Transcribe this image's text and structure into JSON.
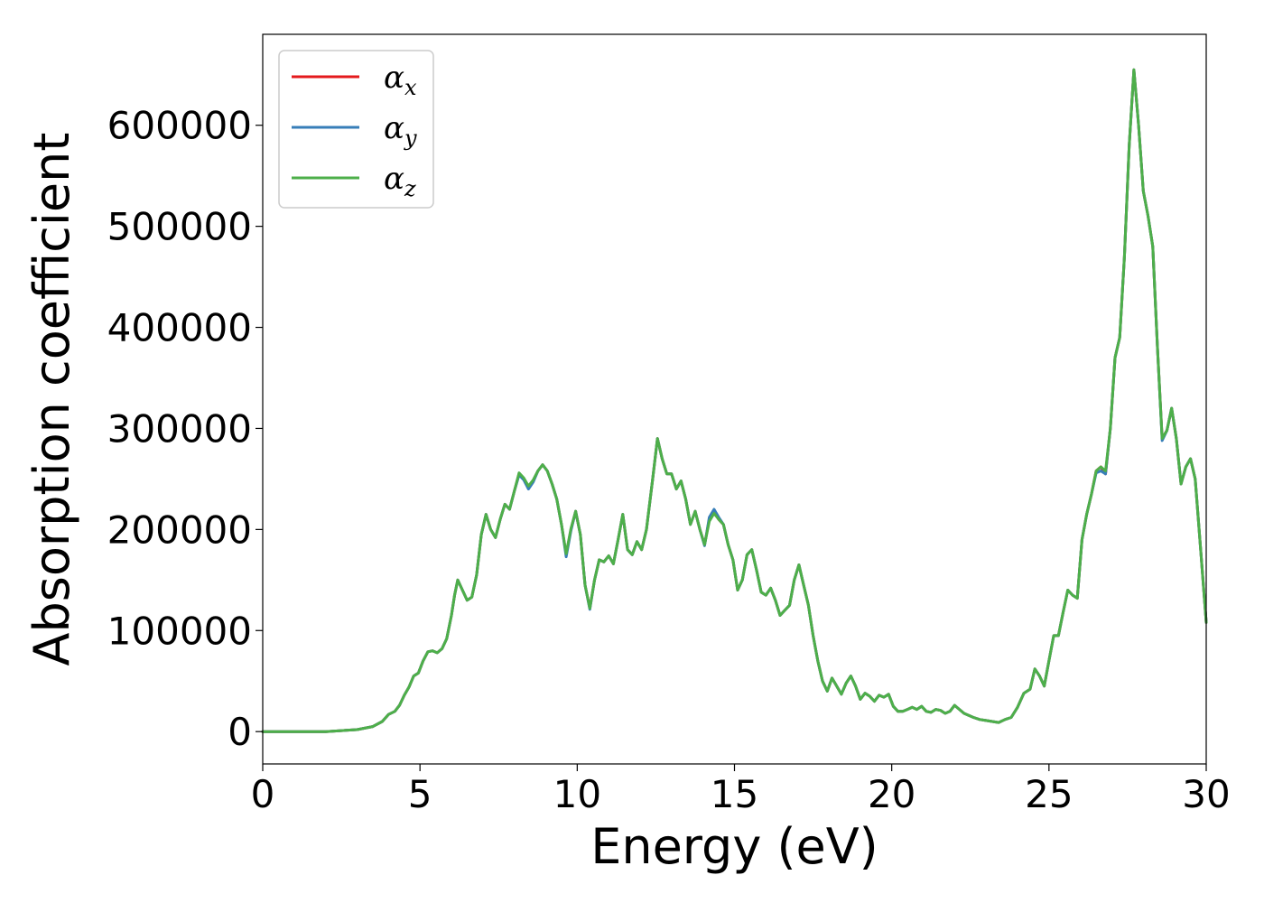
{
  "chart_data": {
    "type": "line",
    "title": "",
    "xlabel": "Energy (eV)",
    "ylabel": "Absorption coefficient",
    "xlim": [
      0,
      30
    ],
    "ylim": [
      -32000,
      690000
    ],
    "xticks": [
      0,
      5,
      10,
      15,
      20,
      25,
      30
    ],
    "yticks": [
      0,
      100000,
      200000,
      300000,
      400000,
      500000,
      600000
    ],
    "grid": false,
    "legend_position": "top-left",
    "series": [
      {
        "name": "α_x",
        "name_base": "α",
        "name_sub": "x",
        "color": "#e41a1c",
        "x": [
          0,
          1,
          2,
          3,
          3.5,
          3.8,
          4.0,
          4.2,
          4.35,
          4.5,
          4.65,
          4.8,
          4.95,
          5.1,
          5.25,
          5.4,
          5.55,
          5.7,
          5.85,
          6.0,
          6.1,
          6.2,
          6.35,
          6.5,
          6.65,
          6.8,
          6.95,
          7.1,
          7.25,
          7.4,
          7.55,
          7.7,
          7.85,
          8.0,
          8.15,
          8.3,
          8.45,
          8.6,
          8.75,
          8.9,
          9.05,
          9.2,
          9.35,
          9.5,
          9.65,
          9.8,
          9.95,
          10.1,
          10.25,
          10.4,
          10.55,
          10.7,
          10.85,
          11.0,
          11.15,
          11.3,
          11.45,
          11.6,
          11.75,
          11.9,
          12.05,
          12.2,
          12.4,
          12.55,
          12.7,
          12.85,
          13.0,
          13.15,
          13.3,
          13.45,
          13.6,
          13.75,
          13.9,
          14.05,
          14.2,
          14.35,
          14.5,
          14.65,
          14.8,
          14.95,
          15.1,
          15.25,
          15.4,
          15.55,
          15.7,
          15.85,
          16.0,
          16.15,
          16.3,
          16.45,
          16.6,
          16.75,
          16.9,
          17.05,
          17.2,
          17.35,
          17.5,
          17.65,
          17.8,
          17.95,
          18.1,
          18.25,
          18.4,
          18.55,
          18.7,
          18.85,
          19.0,
          19.15,
          19.3,
          19.45,
          19.6,
          19.75,
          19.9,
          20.05,
          20.2,
          20.35,
          20.5,
          20.65,
          20.8,
          20.95,
          21.1,
          21.25,
          21.4,
          21.55,
          21.7,
          21.85,
          22.0,
          22.15,
          22.3,
          22.45,
          22.6,
          22.8,
          23.0,
          23.2,
          23.4,
          23.6,
          23.8,
          24.0,
          24.2,
          24.4,
          24.55,
          24.7,
          24.85,
          25.0,
          25.15,
          25.3,
          25.45,
          25.6,
          25.75,
          25.9,
          26.05,
          26.2,
          26.35,
          26.5,
          26.65,
          26.8,
          26.95,
          27.1,
          27.25,
          27.4,
          27.55,
          27.7,
          27.85,
          28.0,
          28.15,
          28.3,
          28.45,
          28.6,
          28.75,
          28.9,
          29.05,
          29.2,
          29.35,
          29.5,
          29.65,
          29.8,
          30.0
        ],
        "values": [
          0,
          0,
          0,
          2000,
          5000,
          10000,
          17000,
          20000,
          26000,
          36000,
          44000,
          55000,
          58000,
          70000,
          79000,
          80000,
          78000,
          82000,
          92000,
          115000,
          135000,
          150000,
          140000,
          130000,
          133000,
          155000,
          195000,
          215000,
          200000,
          192000,
          210000,
          225000,
          220000,
          238000,
          255000,
          250000,
          242000,
          248000,
          258000,
          264000,
          258000,
          245000,
          230000,
          205000,
          175000,
          200000,
          218000,
          195000,
          145000,
          122000,
          150000,
          170000,
          168000,
          174000,
          166000,
          190000,
          215000,
          180000,
          175000,
          188000,
          180000,
          200000,
          250000,
          290000,
          270000,
          255000,
          255000,
          240000,
          248000,
          230000,
          205000,
          218000,
          200000,
          185000,
          210000,
          218000,
          210000,
          205000,
          185000,
          170000,
          140000,
          150000,
          175000,
          180000,
          160000,
          138000,
          135000,
          142000,
          130000,
          115000,
          120000,
          125000,
          150000,
          165000,
          145000,
          125000,
          95000,
          70000,
          50000,
          40000,
          53000,
          45000,
          37000,
          48000,
          55000,
          45000,
          32000,
          38000,
          35000,
          30000,
          36000,
          34000,
          37000,
          25000,
          20000,
          20000,
          22000,
          24000,
          22000,
          25000,
          20000,
          19000,
          22000,
          21000,
          18000,
          20000,
          26000,
          22000,
          18000,
          16000,
          14000,
          12000,
          11000,
          10000,
          9000,
          12000,
          14000,
          24000,
          38000,
          42000,
          62000,
          55000,
          45000,
          70000,
          95000,
          95000,
          118000,
          140000,
          135000,
          132000,
          190000,
          215000,
          235000,
          258000,
          262000,
          255000,
          300000,
          370000,
          390000,
          470000,
          580000,
          655000,
          600000,
          535000,
          510000,
          480000,
          380000,
          290000,
          298000,
          320000,
          290000,
          245000,
          262000,
          270000,
          250000,
          190000,
          108000
        ]
      },
      {
        "name": "α_y",
        "name_base": "α",
        "name_sub": "y",
        "color": "#377eb8",
        "x": [
          0,
          1,
          2,
          3,
          3.5,
          3.8,
          4.0,
          4.2,
          4.35,
          4.5,
          4.65,
          4.8,
          4.95,
          5.1,
          5.25,
          5.4,
          5.55,
          5.7,
          5.85,
          6.0,
          6.1,
          6.2,
          6.35,
          6.5,
          6.65,
          6.8,
          6.95,
          7.1,
          7.25,
          7.4,
          7.55,
          7.7,
          7.85,
          8.0,
          8.15,
          8.3,
          8.45,
          8.6,
          8.75,
          8.9,
          9.05,
          9.2,
          9.35,
          9.5,
          9.65,
          9.8,
          9.95,
          10.1,
          10.25,
          10.4,
          10.55,
          10.7,
          10.85,
          11.0,
          11.15,
          11.3,
          11.45,
          11.6,
          11.75,
          11.9,
          12.05,
          12.2,
          12.4,
          12.55,
          12.7,
          12.85,
          13.0,
          13.15,
          13.3,
          13.45,
          13.6,
          13.75,
          13.9,
          14.05,
          14.2,
          14.35,
          14.5,
          14.65,
          14.8,
          14.95,
          15.1,
          15.25,
          15.4,
          15.55,
          15.7,
          15.85,
          16.0,
          16.15,
          16.3,
          16.45,
          16.6,
          16.75,
          16.9,
          17.05,
          17.2,
          17.35,
          17.5,
          17.65,
          17.8,
          17.95,
          18.1,
          18.25,
          18.4,
          18.55,
          18.7,
          18.85,
          19.0,
          19.15,
          19.3,
          19.45,
          19.6,
          19.75,
          19.9,
          20.05,
          20.2,
          20.35,
          20.5,
          20.65,
          20.8,
          20.95,
          21.1,
          21.25,
          21.4,
          21.55,
          21.7,
          21.85,
          22.0,
          22.15,
          22.3,
          22.45,
          22.6,
          22.8,
          23.0,
          23.2,
          23.4,
          23.6,
          23.8,
          24.0,
          24.2,
          24.4,
          24.55,
          24.7,
          24.85,
          25.0,
          25.15,
          25.3,
          25.45,
          25.6,
          25.75,
          25.9,
          26.05,
          26.2,
          26.35,
          26.5,
          26.65,
          26.8,
          26.95,
          27.1,
          27.25,
          27.4,
          27.55,
          27.7,
          27.85,
          28.0,
          28.15,
          28.3,
          28.45,
          28.6,
          28.75,
          28.9,
          29.05,
          29.2,
          29.35,
          29.5,
          29.65,
          29.8,
          30.0
        ],
        "values": [
          0,
          0,
          0,
          2000,
          5000,
          10000,
          17000,
          20000,
          26000,
          36000,
          44000,
          55000,
          58000,
          70000,
          79000,
          80000,
          78000,
          82000,
          92000,
          115000,
          135000,
          150000,
          140000,
          130000,
          133000,
          155000,
          195000,
          215000,
          200000,
          192000,
          210000,
          225000,
          220000,
          238000,
          254000,
          249000,
          240000,
          247000,
          258000,
          264000,
          258000,
          245000,
          230000,
          205000,
          173000,
          199000,
          218000,
          195000,
          145000,
          121000,
          150000,
          170000,
          168000,
          174000,
          166000,
          190000,
          215000,
          180000,
          175000,
          188000,
          180000,
          200000,
          250000,
          290000,
          270000,
          255000,
          255000,
          240000,
          248000,
          230000,
          205000,
          218000,
          200000,
          184000,
          212000,
          220000,
          212000,
          205000,
          185000,
          170000,
          140000,
          150000,
          175000,
          180000,
          160000,
          138000,
          135000,
          142000,
          130000,
          115000,
          120000,
          125000,
          150000,
          165000,
          145000,
          125000,
          95000,
          70000,
          50000,
          40000,
          53000,
          45000,
          37000,
          48000,
          55000,
          45000,
          32000,
          38000,
          35000,
          30000,
          36000,
          34000,
          37000,
          25000,
          20000,
          20000,
          22000,
          24000,
          22000,
          25000,
          20000,
          19000,
          22000,
          21000,
          18000,
          20000,
          26000,
          22000,
          18000,
          16000,
          14000,
          12000,
          11000,
          10000,
          9000,
          12000,
          14000,
          24000,
          38000,
          42000,
          62000,
          55000,
          45000,
          70000,
          95000,
          95000,
          118000,
          140000,
          135000,
          132000,
          190000,
          215000,
          235000,
          256000,
          258000,
          255000,
          300000,
          370000,
          390000,
          470000,
          580000,
          655000,
          600000,
          535000,
          510000,
          480000,
          380000,
          288000,
          298000,
          320000,
          290000,
          245000,
          262000,
          270000,
          250000,
          190000,
          108000
        ]
      },
      {
        "name": "α_z",
        "name_base": "α",
        "name_sub": "z",
        "color": "#4daf4a",
        "x": [
          0,
          1,
          2,
          3,
          3.5,
          3.8,
          4.0,
          4.2,
          4.35,
          4.5,
          4.65,
          4.8,
          4.95,
          5.1,
          5.25,
          5.4,
          5.55,
          5.7,
          5.85,
          6.0,
          6.1,
          6.2,
          6.35,
          6.5,
          6.65,
          6.8,
          6.95,
          7.1,
          7.25,
          7.4,
          7.55,
          7.7,
          7.85,
          8.0,
          8.15,
          8.3,
          8.45,
          8.6,
          8.75,
          8.9,
          9.05,
          9.2,
          9.35,
          9.5,
          9.65,
          9.8,
          9.95,
          10.1,
          10.25,
          10.4,
          10.55,
          10.7,
          10.85,
          11.0,
          11.15,
          11.3,
          11.45,
          11.6,
          11.75,
          11.9,
          12.05,
          12.2,
          12.4,
          12.55,
          12.7,
          12.85,
          13.0,
          13.15,
          13.3,
          13.45,
          13.6,
          13.75,
          13.9,
          14.05,
          14.2,
          14.35,
          14.5,
          14.65,
          14.8,
          14.95,
          15.1,
          15.25,
          15.4,
          15.55,
          15.7,
          15.85,
          16.0,
          16.15,
          16.3,
          16.45,
          16.6,
          16.75,
          16.9,
          17.05,
          17.2,
          17.35,
          17.5,
          17.65,
          17.8,
          17.95,
          18.1,
          18.25,
          18.4,
          18.55,
          18.7,
          18.85,
          19.0,
          19.15,
          19.3,
          19.45,
          19.6,
          19.75,
          19.9,
          20.05,
          20.2,
          20.35,
          20.5,
          20.65,
          20.8,
          20.95,
          21.1,
          21.25,
          21.4,
          21.55,
          21.7,
          21.85,
          22.0,
          22.15,
          22.3,
          22.45,
          22.6,
          22.8,
          23.0,
          23.2,
          23.4,
          23.6,
          23.8,
          24.0,
          24.2,
          24.4,
          24.55,
          24.7,
          24.85,
          25.0,
          25.15,
          25.3,
          25.45,
          25.6,
          25.75,
          25.9,
          26.05,
          26.2,
          26.35,
          26.5,
          26.65,
          26.8,
          26.95,
          27.1,
          27.25,
          27.4,
          27.55,
          27.7,
          27.85,
          28.0,
          28.15,
          28.3,
          28.45,
          28.6,
          28.75,
          28.9,
          29.05,
          29.2,
          29.35,
          29.5,
          29.65,
          29.8,
          30.0
        ],
        "values": [
          0,
          0,
          0,
          2000,
          5000,
          10000,
          17000,
          20000,
          26000,
          36000,
          44000,
          55000,
          58000,
          70000,
          79000,
          80000,
          78000,
          82000,
          92000,
          115000,
          135000,
          150000,
          140000,
          130000,
          133000,
          155000,
          195000,
          215000,
          200000,
          192000,
          210000,
          225000,
          220000,
          238000,
          256000,
          251000,
          243000,
          249000,
          258000,
          264000,
          258000,
          245000,
          230000,
          205000,
          176000,
          201000,
          218000,
          195000,
          145000,
          122000,
          150000,
          170000,
          168000,
          174000,
          166000,
          190000,
          215000,
          180000,
          175000,
          188000,
          180000,
          200000,
          250000,
          290000,
          270000,
          255000,
          255000,
          240000,
          248000,
          230000,
          205000,
          218000,
          200000,
          185000,
          208000,
          216000,
          210000,
          205000,
          185000,
          170000,
          140000,
          150000,
          175000,
          180000,
          160000,
          138000,
          135000,
          142000,
          130000,
          115000,
          120000,
          125000,
          150000,
          165000,
          145000,
          125000,
          95000,
          70000,
          50000,
          40000,
          53000,
          45000,
          37000,
          48000,
          55000,
          45000,
          32000,
          38000,
          35000,
          30000,
          36000,
          34000,
          37000,
          25000,
          20000,
          20000,
          22000,
          24000,
          22000,
          25000,
          20000,
          19000,
          22000,
          21000,
          18000,
          20000,
          26000,
          22000,
          18000,
          16000,
          14000,
          12000,
          11000,
          10000,
          9000,
          12000,
          14000,
          24000,
          38000,
          42000,
          62000,
          55000,
          45000,
          70000,
          95000,
          95000,
          118000,
          140000,
          135000,
          132000,
          190000,
          215000,
          235000,
          258000,
          262000,
          258000,
          300000,
          370000,
          390000,
          470000,
          580000,
          655000,
          600000,
          535000,
          510000,
          480000,
          380000,
          290000,
          298000,
          320000,
          290000,
          245000,
          262000,
          270000,
          250000,
          190000,
          108000
        ]
      }
    ]
  }
}
